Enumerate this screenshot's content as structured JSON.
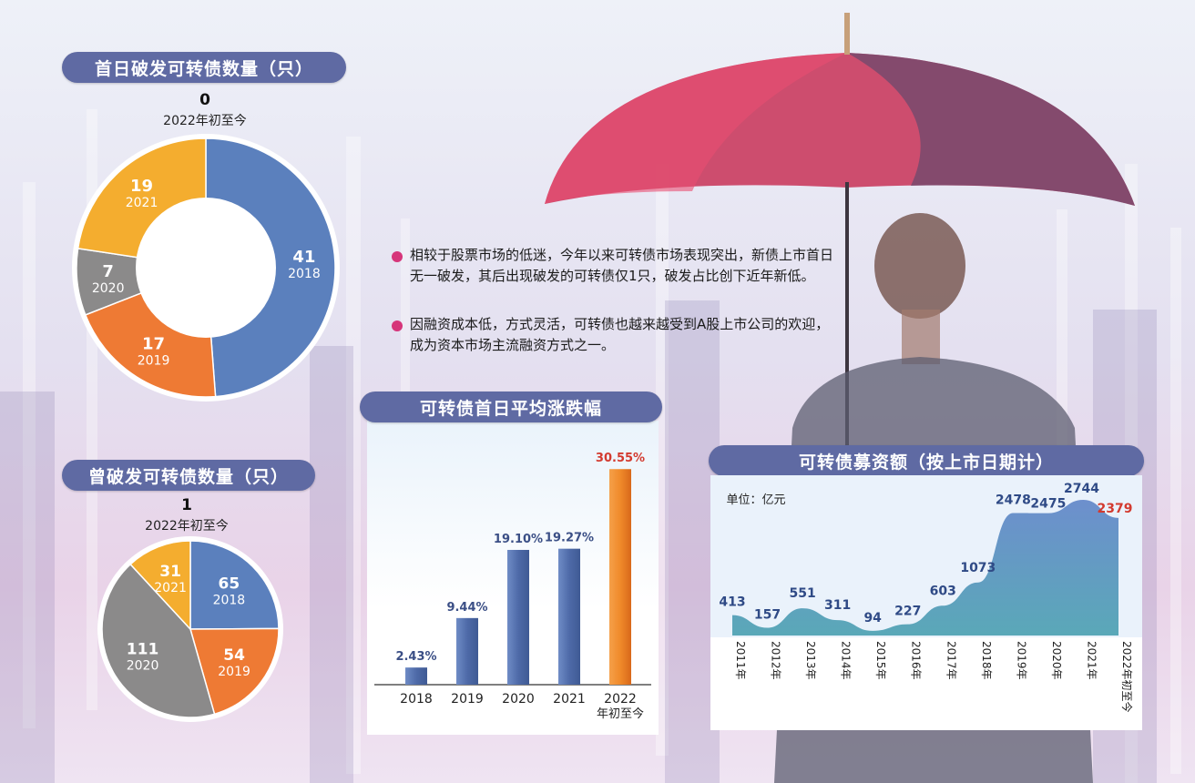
{
  "colors": {
    "pill": "#5f6aa3",
    "blue": "#5b80bd",
    "orange": "#ee7a34",
    "grey": "#8b8a8a",
    "yellow": "#f4ad2f",
    "bar": "#4e6aa8",
    "bar_highlight": "#f08a2a",
    "area": "#5aa8b8",
    "red_label": "#d33a2f",
    "bullet_dot": "#d6357a"
  },
  "bullets": [
    "相较于股票市场的低迷，今年以来可转债市场表现突出，新债上市首日无一破发，其后出现破发的可转债仅1只，破发占比创下近年新低。",
    "因融资成本低，方式灵活，可转债也越来越受到A股上市公司的欢迎，成为资本市场主流融资方式之一。"
  ],
  "chart_data": [
    {
      "type": "pie",
      "title": "首日破发可转债数量（只）",
      "donut": true,
      "top_value": "0",
      "top_label": "2022年初至今",
      "slices": [
        {
          "label": "2018",
          "value": 41,
          "color": "#5b80bd"
        },
        {
          "label": "2019",
          "value": 17,
          "color": "#ee7a34"
        },
        {
          "label": "2020",
          "value": 7,
          "color": "#8b8a8a"
        },
        {
          "label": "2021",
          "value": 19,
          "color": "#f4ad2f"
        }
      ]
    },
    {
      "type": "pie",
      "title": "曾破发可转债数量（只）",
      "donut": false,
      "top_value": "1",
      "top_label": "2022年初至今",
      "slices": [
        {
          "label": "2018",
          "value": 65,
          "color": "#5b80bd"
        },
        {
          "label": "2019",
          "value": 54,
          "color": "#ee7a34"
        },
        {
          "label": "2020",
          "value": 111,
          "color": "#8b8a8a"
        },
        {
          "label": "2021",
          "value": 31,
          "color": "#f4ad2f"
        }
      ]
    },
    {
      "type": "bar",
      "title": "可转债首日平均涨跌幅",
      "categories": [
        "2018",
        "2019",
        "2020",
        "2021",
        "2022\n年初至今"
      ],
      "values": [
        2.43,
        9.44,
        19.1,
        19.27,
        30.55
      ],
      "value_labels": [
        "2.43%",
        "9.44%",
        "19.10%",
        "19.27%",
        "30.55%"
      ],
      "ylim": [
        0,
        32
      ]
    },
    {
      "type": "area",
      "title": "可转债募资额（按上市日期计）",
      "unit": "单位：亿元",
      "categories": [
        "2011年",
        "2012年",
        "2013年",
        "2014年",
        "2015年",
        "2016年",
        "2017年",
        "2018年",
        "2019年",
        "2020年",
        "2021年",
        "2022年初至今"
      ],
      "values": [
        413,
        157,
        551,
        311,
        94,
        227,
        603,
        1073,
        2478,
        2475,
        2744,
        2379
      ],
      "ylim": [
        0,
        2800
      ]
    }
  ]
}
